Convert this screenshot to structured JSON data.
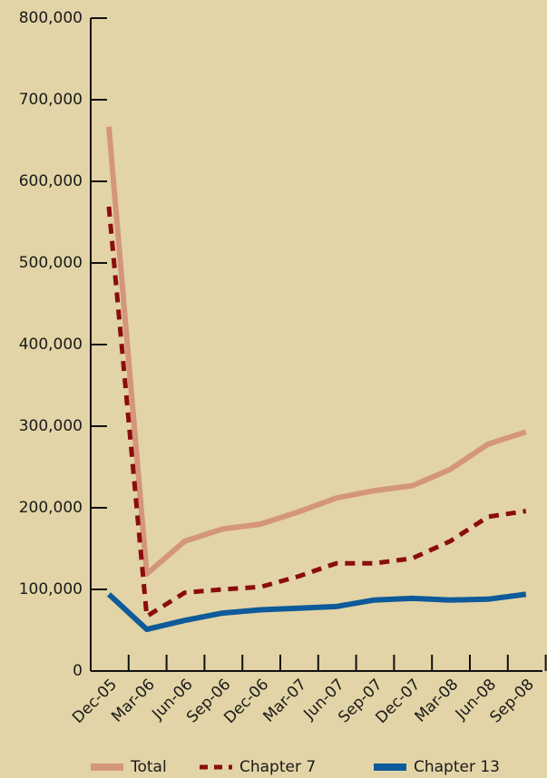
{
  "chart_data": {
    "type": "line",
    "categories": [
      "Dec-05",
      "Mar-06",
      "Jun-06",
      "Sep-06",
      "Dec-06",
      "Mar-07",
      "Jun-07",
      "Sep-07",
      "Dec-07",
      "Mar-08",
      "Jun-08",
      "Sep-08"
    ],
    "series": [
      {
        "name": "Total",
        "color": "#d4967a",
        "dash": false,
        "values": [
          667000,
          119000,
          159000,
          174000,
          180000,
          195000,
          212000,
          221000,
          227000,
          247000,
          278000,
          293000
        ]
      },
      {
        "name": "Chapter 7",
        "color": "#8b0d0d",
        "dash": true,
        "values": [
          569000,
          67000,
          96000,
          100000,
          103000,
          116000,
          132000,
          132000,
          138000,
          159000,
          189000,
          196000
        ]
      },
      {
        "name": "Chapter 13",
        "color": "#0e5a9a",
        "dash": false,
        "values": [
          94000,
          51000,
          62000,
          71000,
          75000,
          77000,
          79000,
          87000,
          89000,
          87000,
          88000,
          94000
        ]
      }
    ],
    "ylim": [
      0,
      800000
    ],
    "yticks": [
      0,
      {
        "value": 100000,
        "label": "100,000"
      },
      {
        "value": 200000,
        "label": "200,000"
      },
      {
        "value": 300000,
        "label": "300,000"
      },
      {
        "value": 400000,
        "label": "400,000"
      },
      {
        "value": 500000,
        "label": "500,000"
      },
      {
        "value": 600000,
        "label": "600,000"
      },
      {
        "value": 700000,
        "label": "700,000"
      },
      {
        "value": 800000,
        "label": "800,000"
      }
    ],
    "legend": "bottom"
  }
}
